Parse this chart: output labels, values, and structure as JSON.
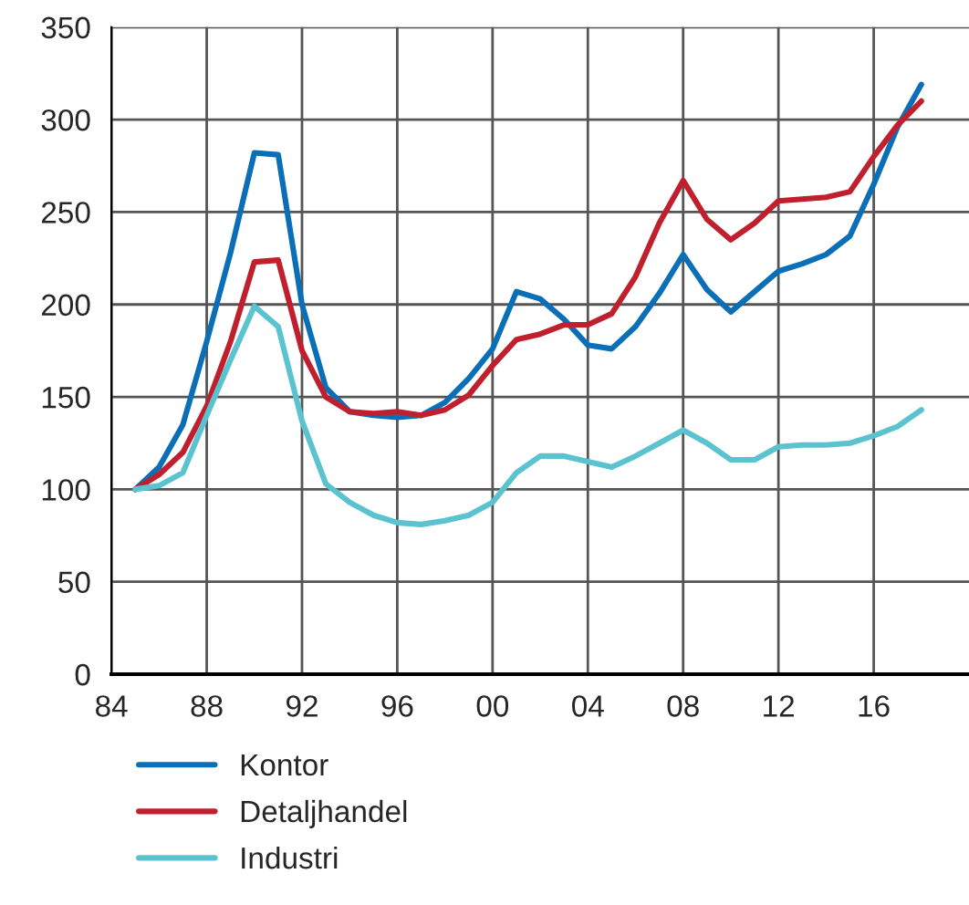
{
  "chart_data": {
    "type": "line",
    "x": [
      1985,
      1986,
      1987,
      1988,
      1989,
      1990,
      1991,
      1992,
      1993,
      1994,
      1995,
      1996,
      1997,
      1998,
      1999,
      2000,
      2001,
      2002,
      2003,
      2004,
      2005,
      2006,
      2007,
      2008,
      2009,
      2010,
      2011,
      2012,
      2013,
      2014,
      2015,
      2016,
      2017,
      2018
    ],
    "series": [
      {
        "name": "Kontor",
        "color": "#0a6fb7",
        "values": [
          100,
          112,
          135,
          180,
          228,
          282,
          281,
          200,
          155,
          142,
          140,
          139,
          140,
          147,
          160,
          176,
          207,
          203,
          192,
          178,
          176,
          188,
          206,
          227,
          208,
          196,
          207,
          218,
          222,
          227,
          237,
          265,
          296,
          319
        ]
      },
      {
        "name": "Detaljhandel",
        "color": "#c0202e",
        "values": [
          100,
          108,
          120,
          145,
          180,
          223,
          224,
          175,
          150,
          142,
          141,
          142,
          140,
          143,
          151,
          167,
          181,
          184,
          189,
          189,
          195,
          215,
          244,
          267,
          246,
          235,
          244,
          256,
          257,
          258,
          261,
          280,
          297,
          310
        ]
      },
      {
        "name": "Industri",
        "color": "#5bc3d0",
        "values": [
          100,
          102,
          109,
          140,
          170,
          199,
          188,
          137,
          103,
          93,
          86,
          82,
          81,
          83,
          86,
          93,
          109,
          118,
          118,
          115,
          112,
          118,
          125,
          132,
          125,
          116,
          116,
          123,
          124,
          124,
          125,
          129,
          134,
          143
        ]
      }
    ],
    "xlim": [
      1984,
      2020
    ],
    "xticks": [
      {
        "value": 1984,
        "label": "84"
      },
      {
        "value": 1988,
        "label": "88"
      },
      {
        "value": 1992,
        "label": "92"
      },
      {
        "value": 1996,
        "label": "96"
      },
      {
        "value": 2000,
        "label": "00"
      },
      {
        "value": 2004,
        "label": "04"
      },
      {
        "value": 2008,
        "label": "08"
      },
      {
        "value": 2012,
        "label": "12"
      },
      {
        "value": 2016,
        "label": "16"
      }
    ],
    "ylim": [
      0,
      350
    ],
    "yticks": [
      0,
      50,
      100,
      150,
      200,
      250,
      300,
      350
    ],
    "grid": true,
    "legend": "bottom",
    "marker": "none",
    "line_style": "solid"
  }
}
